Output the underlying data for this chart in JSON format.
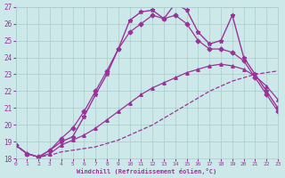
{
  "xlabel": "Windchill (Refroidissement éolien,°C)",
  "xlim": [
    0,
    23
  ],
  "ylim": [
    18,
    27
  ],
  "background_color": "#cce8e8",
  "grid_color": "#aacccc",
  "line_color": "#993399",
  "xticks": [
    0,
    1,
    2,
    3,
    4,
    5,
    6,
    7,
    8,
    9,
    10,
    11,
    12,
    13,
    14,
    15,
    16,
    17,
    18,
    19,
    20,
    21,
    22,
    23
  ],
  "yticks": [
    18,
    19,
    20,
    21,
    22,
    23,
    24,
    25,
    26,
    27
  ],
  "series": [
    {
      "x": [
        0,
        1,
        2,
        3,
        4,
        5,
        6,
        7,
        8,
        9,
        10,
        11,
        12,
        13,
        14,
        15,
        16,
        17,
        18,
        19,
        20,
        21,
        22,
        23
      ],
      "y": [
        18.8,
        18.3,
        18.1,
        18.2,
        18.4,
        18.5,
        18.6,
        18.7,
        18.9,
        19.1,
        19.4,
        19.7,
        20.0,
        20.4,
        20.8,
        21.2,
        21.6,
        22.0,
        22.3,
        22.6,
        22.8,
        23.0,
        23.1,
        23.2
      ],
      "marker": null,
      "linestyle": "--",
      "linewidth": 0.9
    },
    {
      "x": [
        0,
        1,
        2,
        3,
        4,
        5,
        6,
        7,
        8,
        9,
        10,
        11,
        12,
        13,
        14,
        15,
        16,
        17,
        18,
        19,
        20,
        21,
        22,
        23
      ],
      "y": [
        18.8,
        18.3,
        18.1,
        18.3,
        18.8,
        19.1,
        19.4,
        19.8,
        20.3,
        20.8,
        21.3,
        21.8,
        22.2,
        22.5,
        22.8,
        23.1,
        23.3,
        23.5,
        23.6,
        23.5,
        23.3,
        22.9,
        22.3,
        21.5
      ],
      "marker": "^",
      "markersize": 2.5,
      "linestyle": "-",
      "linewidth": 0.9
    },
    {
      "x": [
        0,
        1,
        2,
        3,
        4,
        5,
        6,
        7,
        8,
        9,
        10,
        11,
        12,
        13,
        14,
        15,
        16,
        17,
        18,
        19,
        20,
        21,
        22,
        23
      ],
      "y": [
        18.8,
        18.3,
        18.1,
        18.5,
        19.2,
        19.8,
        20.8,
        22.0,
        23.2,
        24.5,
        25.5,
        26.0,
        26.5,
        26.3,
        26.5,
        26.0,
        25.0,
        24.5,
        24.5,
        24.3,
        23.8,
        22.8,
        21.8,
        20.8
      ],
      "marker": "D",
      "markersize": 2.5,
      "linestyle": "-",
      "linewidth": 0.9
    },
    {
      "x": [
        0,
        1,
        2,
        3,
        4,
        5,
        6,
        7,
        8,
        9,
        10,
        11,
        12,
        13,
        14,
        15,
        16,
        17,
        18,
        19,
        20,
        21,
        22,
        23
      ],
      "y": [
        18.8,
        18.3,
        18.1,
        18.5,
        19.0,
        19.3,
        20.5,
        21.8,
        23.0,
        24.5,
        26.2,
        26.7,
        26.8,
        26.3,
        27.2,
        26.8,
        25.5,
        24.8,
        25.0,
        26.5,
        24.0,
        23.0,
        22.0,
        21.0
      ],
      "marker": "*",
      "markersize": 3.5,
      "linestyle": "-",
      "linewidth": 1.0
    }
  ]
}
